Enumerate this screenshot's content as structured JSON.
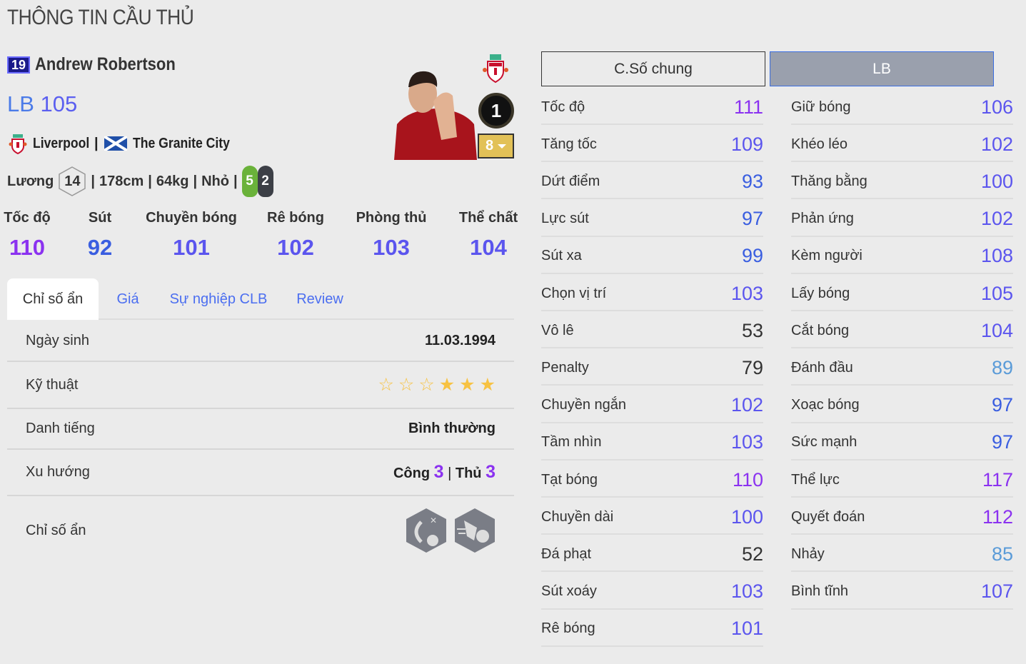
{
  "page_title": "THÔNG TIN CẦU THỦ",
  "player": {
    "season": "19",
    "name": "Andrew Robertson",
    "position": "LB",
    "ovr": "105",
    "club": "Liverpool",
    "nickname": "The Granite City",
    "salary_label": "Lương",
    "salary": "14",
    "height": "178cm",
    "weight": "64kg",
    "body": "Nhỏ",
    "left_foot": "5",
    "right_foot": "2",
    "team_color_level": "1",
    "upgrade_level": "8",
    "sep": "|"
  },
  "icons": {
    "club_crest": "liverpool-crest-icon",
    "flag": "scotland-flag-icon",
    "trait1": "early-crosser-icon",
    "trait2": "speed-dribbler-icon"
  },
  "main_stats": [
    {
      "label": "Tốc độ",
      "value": "110"
    },
    {
      "label": "Sút",
      "value": "92"
    },
    {
      "label": "Chuyền bóng",
      "value": "101"
    },
    {
      "label": "Rê bóng",
      "value": "102"
    },
    {
      "label": "Phòng thủ",
      "value": "103"
    },
    {
      "label": "Thể chất",
      "value": "104"
    }
  ],
  "tabs": [
    {
      "label": "Chỉ số ẩn",
      "active": true
    },
    {
      "label": "Giá"
    },
    {
      "label": "Sự nghiệp CLB"
    },
    {
      "label": "Review"
    }
  ],
  "details": {
    "birth_label": "Ngày sinh",
    "birth": "11.03.1994",
    "skill_label": "Kỹ thuật",
    "skill_stars": 3,
    "skill_total": 6,
    "rep_label": "Danh tiếng",
    "rep": "Bình thường",
    "wr_label": "Xu hướng",
    "att_label": "Công",
    "att": "3",
    "def_label": "Thủ",
    "def": "3",
    "traits_label": "Chỉ số ẩn"
  },
  "stat_buttons": {
    "general": "C.Số chung",
    "position": "LB"
  },
  "stat_colors": {
    "110+": "#8b32f0",
    "100-109": "#5b55ee",
    "90-99": "#3a5ee0",
    "80-89": "#5a9bd8",
    "below80": "#333333"
  },
  "stats_left": [
    {
      "name": "Tốc độ",
      "value": "111"
    },
    {
      "name": "Tăng tốc",
      "value": "109"
    },
    {
      "name": "Dứt điểm",
      "value": "93"
    },
    {
      "name": "Lực sút",
      "value": "97"
    },
    {
      "name": "Sút xa",
      "value": "99"
    },
    {
      "name": "Chọn vị trí",
      "value": "103"
    },
    {
      "name": "Vô lê",
      "value": "53"
    },
    {
      "name": "Penalty",
      "value": "79"
    },
    {
      "name": "Chuyền ngắn",
      "value": "102"
    },
    {
      "name": "Tầm nhìn",
      "value": "103"
    },
    {
      "name": "Tạt bóng",
      "value": "110"
    },
    {
      "name": "Chuyền dài",
      "value": "100"
    },
    {
      "name": "Đá phạt",
      "value": "52"
    },
    {
      "name": "Sút xoáy",
      "value": "103"
    },
    {
      "name": "Rê bóng",
      "value": "101"
    }
  ],
  "stats_right": [
    {
      "name": "Giữ bóng",
      "value": "106"
    },
    {
      "name": "Khéo léo",
      "value": "102"
    },
    {
      "name": "Thăng bằng",
      "value": "100"
    },
    {
      "name": "Phản ứng",
      "value": "102"
    },
    {
      "name": "Kèm người",
      "value": "108"
    },
    {
      "name": "Lấy bóng",
      "value": "105"
    },
    {
      "name": "Cắt bóng",
      "value": "104"
    },
    {
      "name": "Đánh đầu",
      "value": "89"
    },
    {
      "name": "Xoạc bóng",
      "value": "97"
    },
    {
      "name": "Sức mạnh",
      "value": "97"
    },
    {
      "name": "Thể lực",
      "value": "117"
    },
    {
      "name": "Quyết đoán",
      "value": "112"
    },
    {
      "name": "Nhảy",
      "value": "85"
    },
    {
      "name": "Bình tĩnh",
      "value": "107"
    }
  ]
}
